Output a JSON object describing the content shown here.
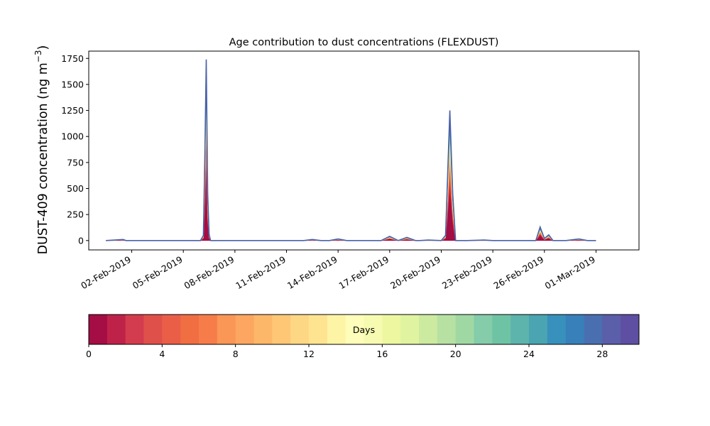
{
  "chart_data": {
    "type": "area",
    "title": "Age contribution to dust concentrations (FLEXDUST)",
    "ylabel_main": "DUST-409 concentration (ng m",
    "ylabel_sup": "−3",
    "ylabel_close": ")",
    "xlabel": "",
    "ylim": [
      -90,
      1820
    ],
    "yticks": [
      0,
      250,
      500,
      750,
      1000,
      1250,
      1500,
      1750
    ],
    "ytick_labels": [
      "0",
      "250",
      "500",
      "750",
      "1000",
      "1250",
      "1500",
      "1750"
    ],
    "xlim": [
      "2019-01-30T12:00",
      "2019-03-03T12:00"
    ],
    "xticks": [
      "2019-02-02",
      "2019-02-05",
      "2019-02-08",
      "2019-02-11",
      "2019-02-14",
      "2019-02-17",
      "2019-02-20",
      "2019-02-23",
      "2019-02-26",
      "2019-03-01"
    ],
    "xtick_labels": [
      "02-Feb-2019",
      "05-Feb-2019",
      "08-Feb-2019",
      "11-Feb-2019",
      "14-Feb-2019",
      "17-Feb-2019",
      "20-Feb-2019",
      "23-Feb-2019",
      "26-Feb-2019",
      "01-Mar-2019"
    ],
    "x": [
      "2019-01-31T12:00",
      "2019-02-01T12:00",
      "2019-02-01T16:00",
      "2019-02-01T20:00",
      "2019-02-06T00:00",
      "2019-02-06T04:00",
      "2019-02-06T06:00",
      "2019-02-06T08:00",
      "2019-02-06T10:00",
      "2019-02-06T12:00",
      "2019-02-06T14:00",
      "2019-02-06T18:00",
      "2019-02-07T00:00",
      "2019-02-12T00:00",
      "2019-02-12T12:00",
      "2019-02-13T00:00",
      "2019-02-13T12:00",
      "2019-02-14T00:00",
      "2019-02-14T12:00",
      "2019-02-16T12:00",
      "2019-02-17T00:00",
      "2019-02-17T12:00",
      "2019-02-18T00:00",
      "2019-02-18T12:00",
      "2019-02-18T18:00",
      "2019-02-19T06:00",
      "2019-02-20T00:00",
      "2019-02-20T06:00",
      "2019-02-20T12:00",
      "2019-02-20T16:00",
      "2019-02-20T20:00",
      "2019-02-21T02:00",
      "2019-02-21T12:00",
      "2019-02-22T12:00",
      "2019-02-23T00:00",
      "2019-02-25T12:00",
      "2019-02-25T18:00",
      "2019-02-26T00:00",
      "2019-02-26T06:00",
      "2019-02-26T12:00",
      "2019-02-26T16:00",
      "2019-02-27T00:00",
      "2019-02-27T06:00",
      "2019-02-28T00:00",
      "2019-02-28T12:00",
      "2019-03-01T00:00"
    ],
    "total": [
      0,
      10,
      0,
      0,
      0,
      50,
      800,
      1740,
      450,
      60,
      0,
      0,
      0,
      0,
      10,
      0,
      0,
      15,
      0,
      0,
      40,
      0,
      30,
      0,
      0,
      5,
      0,
      50,
      1250,
      450,
      0,
      0,
      0,
      5,
      0,
      0,
      130,
      20,
      55,
      0,
      0,
      0,
      0,
      15,
      0,
      0
    ],
    "age_fractions": [
      0.38,
      0.06,
      0.04,
      0.04,
      0.035,
      0.03,
      0.028,
      0.026,
      0.024,
      0.022,
      0.02,
      0.018,
      0.017,
      0.016,
      0.015,
      0.014,
      0.013,
      0.012,
      0.012,
      0.012,
      0.011,
      0.011,
      0.011,
      0.011,
      0.01,
      0.01,
      0.01,
      0.01,
      0.01,
      0.022
    ],
    "colorbar": {
      "label": "Days",
      "range": [
        0,
        30
      ],
      "ticks": [
        0,
        4,
        8,
        12,
        16,
        20,
        24,
        28
      ],
      "tick_labels": [
        "0",
        "4",
        "8",
        "12",
        "16",
        "20",
        "24",
        "28"
      ],
      "colors": [
        "#a50d45",
        "#bf2249",
        "#d33c4e",
        "#e0504a",
        "#ea5e48",
        "#f16e43",
        "#f67d4a",
        "#fa9656",
        "#fca661",
        "#fdb768",
        "#fec776",
        "#fed785",
        "#fee491",
        "#fef4a6",
        "#fefeba",
        "#f6fbb1",
        "#ecf7a0",
        "#e0f3a0",
        "#cceaa0",
        "#b7e1a2",
        "#a0d8a4",
        "#84ccaa",
        "#6fc3a5",
        "#5cb4ac",
        "#4ba4b1",
        "#3891bc",
        "#3880b9",
        "#4a6fb1",
        "#5b5ea8",
        "#5e4fa2"
      ]
    }
  }
}
